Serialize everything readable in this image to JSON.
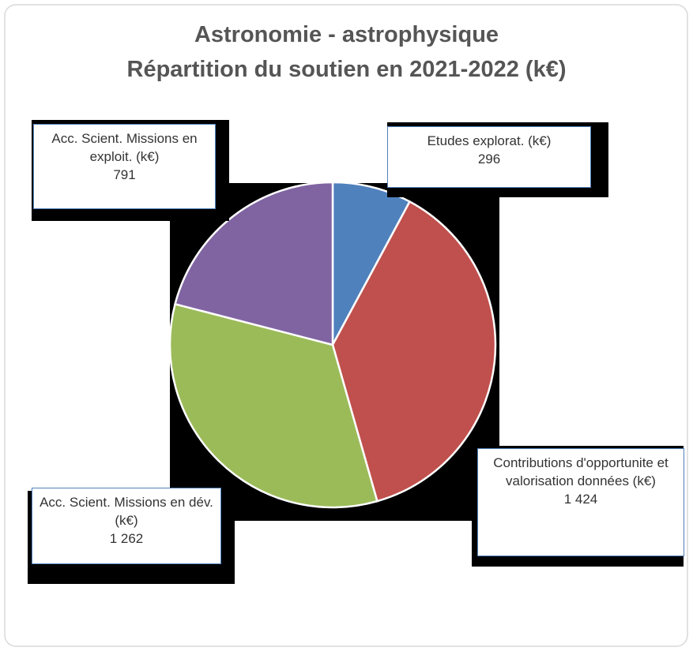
{
  "chart_data": {
    "type": "pie",
    "title": "Astronomie - astrophysique",
    "subtitle": "Répartition du soutien en 2021-2022 (k€)",
    "categories": [
      "Etudes explorat. (k€)",
      "Contributions d'opportunite et valorisation données (k€)",
      "Acc. Scient. Missions en dév. (k€)",
      "Acc. Scient. Missions en exploit. (k€)"
    ],
    "values": [
      296,
      1424,
      1262,
      791
    ],
    "value_labels": [
      "296",
      "1 424",
      "1 262",
      "791"
    ],
    "colors": [
      "#4f81bd",
      "#c0504d",
      "#9bbb59",
      "#8064a2"
    ]
  }
}
